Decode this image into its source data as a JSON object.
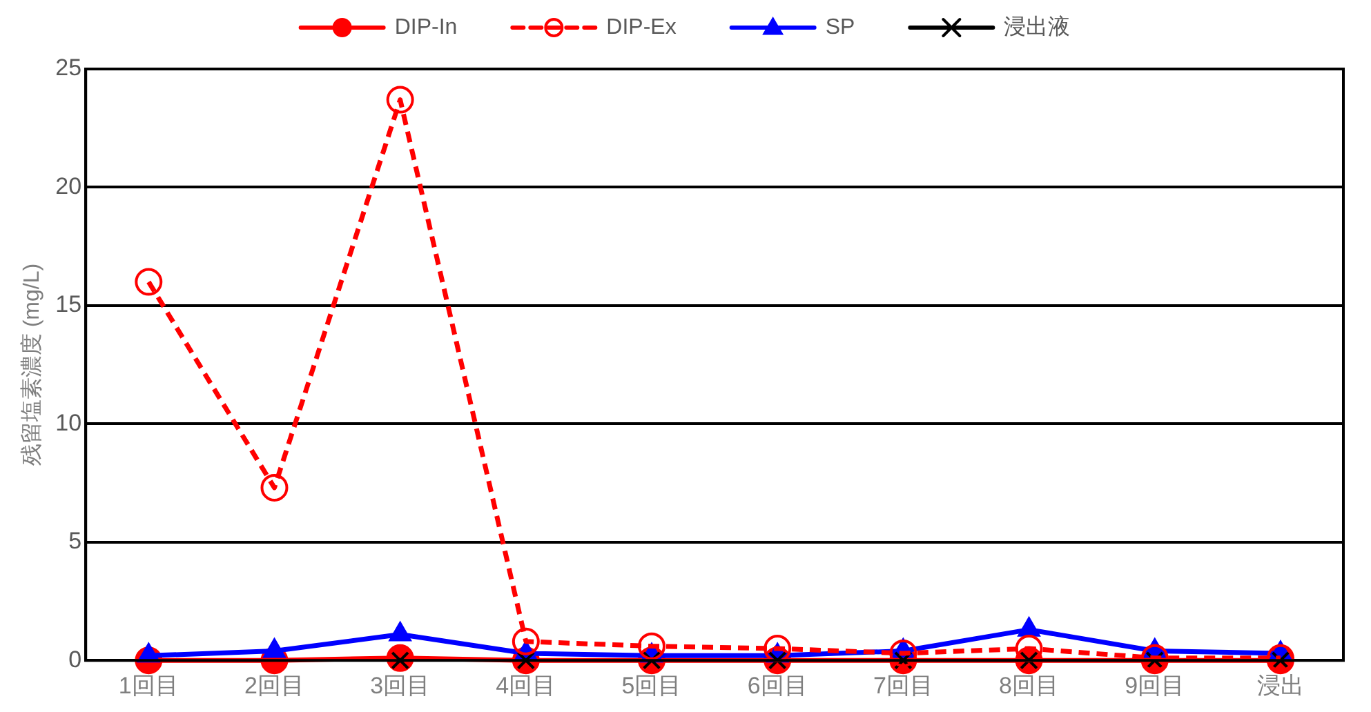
{
  "chart_data": {
    "type": "line",
    "ylabel": "残留塩素濃度 (mg/L)",
    "categories": [
      "1回目",
      "2回目",
      "3回目",
      "4回目",
      "5回目",
      "6回目",
      "7回目",
      "8回目",
      "9回目",
      "浸出"
    ],
    "series": [
      {
        "name": "DIP-In",
        "color": "#ff0000",
        "marker": "circle",
        "line_style": "solid",
        "values": [
          0,
          0,
          0.1,
          0,
          0,
          0,
          0,
          0,
          0,
          0
        ]
      },
      {
        "name": "DIP-Ex",
        "color": "#ff0000",
        "marker": "circle",
        "line_style": "dashed",
        "values": [
          16,
          7.3,
          23.7,
          0.8,
          0.6,
          0.5,
          0.3,
          0.5,
          0.1,
          0.1
        ]
      },
      {
        "name": "SP",
        "color": "#0000ff",
        "marker": "triangle",
        "line_style": "solid",
        "values": [
          0.2,
          0.4,
          1.1,
          0.3,
          0.2,
          0.2,
          0.4,
          1.3,
          0.4,
          0.3
        ]
      },
      {
        "name": "浸出液",
        "color": "#000000",
        "marker": "cross",
        "line_style": "solid",
        "values": [
          null,
          null,
          0,
          0,
          0,
          0,
          0,
          0,
          0,
          0
        ]
      }
    ],
    "ylim": [
      0,
      25
    ],
    "yticks": [
      0,
      5,
      10,
      15,
      20,
      25
    ],
    "grid": "y",
    "legend": "top"
  }
}
